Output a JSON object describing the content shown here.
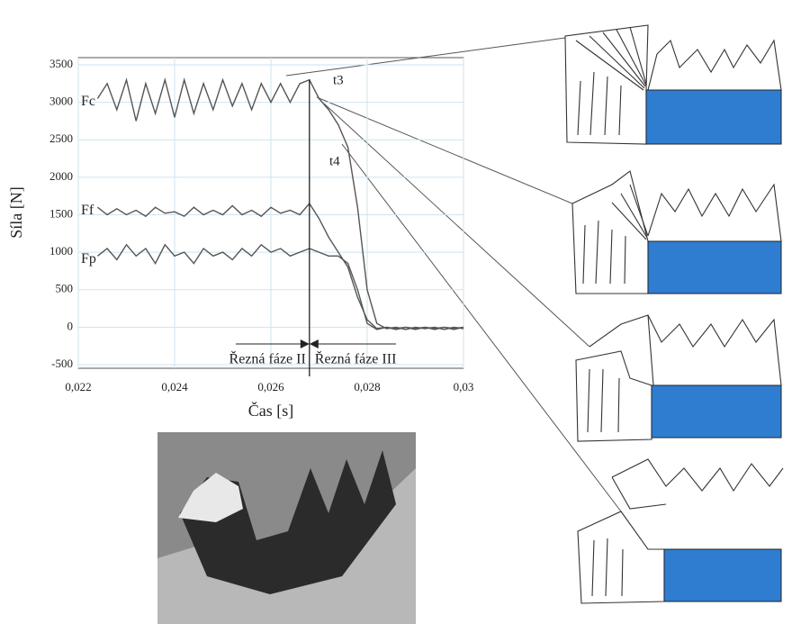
{
  "chart_data": {
    "type": "line",
    "x_label": "Čas [s]",
    "y_label": "Síla [N]",
    "x": [
      0.0224,
      0.0226,
      0.0228,
      0.023,
      0.0232,
      0.0234,
      0.0236,
      0.0238,
      0.024,
      0.0242,
      0.0244,
      0.0246,
      0.0248,
      0.025,
      0.0252,
      0.0254,
      0.0256,
      0.0258,
      0.026,
      0.0262,
      0.0264,
      0.0266,
      0.0268,
      0.027,
      0.0272,
      0.0274,
      0.0276,
      0.0278,
      0.028,
      0.0282,
      0.0284,
      0.0286,
      0.0288,
      0.029,
      0.0292,
      0.0294,
      0.0296,
      0.0298,
      0.03
    ],
    "series": [
      {
        "name": "Fc",
        "color": "#555555",
        "values": [
          3050,
          3250,
          2900,
          3300,
          2750,
          3250,
          2850,
          3300,
          2800,
          3300,
          2850,
          3250,
          2900,
          3300,
          2950,
          3250,
          2900,
          3250,
          3000,
          3250,
          3000,
          3250,
          3300,
          3050,
          2900,
          2700,
          2400,
          1600,
          500,
          50,
          -20,
          0,
          -30,
          0,
          -20,
          0,
          -30,
          0,
          -20
        ]
      },
      {
        "name": "Ff",
        "color": "#555555",
        "values": [
          1600,
          1500,
          1580,
          1500,
          1560,
          1480,
          1600,
          1520,
          1540,
          1480,
          1600,
          1500,
          1560,
          1500,
          1620,
          1500,
          1560,
          1480,
          1600,
          1520,
          1560,
          1500,
          1650,
          1450,
          1200,
          1000,
          800,
          400,
          100,
          -20,
          0,
          -30,
          0,
          -20,
          0,
          -30,
          0,
          -20,
          0
        ]
      },
      {
        "name": "Fp",
        "color": "#555555",
        "values": [
          950,
          1050,
          900,
          1100,
          950,
          1050,
          850,
          1100,
          950,
          1000,
          850,
          1050,
          950,
          1000,
          900,
          1050,
          950,
          1100,
          1000,
          1050,
          950,
          1000,
          1050,
          1000,
          950,
          950,
          850,
          500,
          50,
          -30,
          0,
          -20,
          0,
          -30,
          0,
          -20,
          0,
          -30,
          0
        ]
      }
    ],
    "xlim": [
      0.022,
      0.03
    ],
    "ylim": [
      -500,
      3500
    ],
    "xticks": [
      {
        "value": 0.022,
        "label": "0,022"
      },
      {
        "value": 0.024,
        "label": "0,024"
      },
      {
        "value": 0.026,
        "label": "0,026"
      },
      {
        "value": 0.028,
        "label": "0,028"
      },
      {
        "value": 0.03,
        "label": "0,03"
      }
    ],
    "yticks": [
      -500,
      0,
      500,
      1000,
      1500,
      2000,
      2500,
      3000,
      3500
    ],
    "grid": true,
    "grid_color": "#cfe3ee",
    "vline": 0.0268,
    "annotations": {
      "t3": "t3",
      "t4": "t4",
      "phase2": "Řezná fáze II",
      "phase3": "Řezná fáze III"
    }
  }
}
